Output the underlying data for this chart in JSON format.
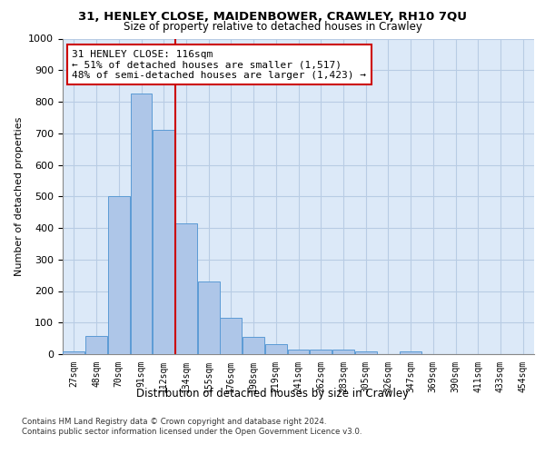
{
  "title1": "31, HENLEY CLOSE, MAIDENBOWER, CRAWLEY, RH10 7QU",
  "title2": "Size of property relative to detached houses in Crawley",
  "xlabel": "Distribution of detached houses by size in Crawley",
  "ylabel": "Number of detached properties",
  "categories": [
    "27sqm",
    "48sqm",
    "70sqm",
    "91sqm",
    "112sqm",
    "134sqm",
    "155sqm",
    "176sqm",
    "198sqm",
    "219sqm",
    "241sqm",
    "262sqm",
    "283sqm",
    "305sqm",
    "326sqm",
    "347sqm",
    "369sqm",
    "390sqm",
    "411sqm",
    "433sqm",
    "454sqm"
  ],
  "values": [
    8,
    58,
    500,
    825,
    710,
    415,
    230,
    115,
    55,
    32,
    15,
    15,
    14,
    9,
    0,
    8,
    0,
    0,
    0,
    0,
    0
  ],
  "bar_color": "#aec6e8",
  "bar_edge_color": "#5b9bd5",
  "vline_x": 4.5,
  "vline_color": "#cc0000",
  "annotation_text": "31 HENLEY CLOSE: 116sqm\n← 51% of detached houses are smaller (1,517)\n48% of semi-detached houses are larger (1,423) →",
  "annotation_box_color": "#ffffff",
  "annotation_box_edge": "#cc0000",
  "ylim": [
    0,
    1000
  ],
  "yticks": [
    0,
    100,
    200,
    300,
    400,
    500,
    600,
    700,
    800,
    900,
    1000
  ],
  "footer1": "Contains HM Land Registry data © Crown copyright and database right 2024.",
  "footer2": "Contains public sector information licensed under the Open Government Licence v3.0.",
  "background_color": "#dce9f8",
  "plot_bg_color": "#ffffff",
  "grid_color": "#b8cce4"
}
